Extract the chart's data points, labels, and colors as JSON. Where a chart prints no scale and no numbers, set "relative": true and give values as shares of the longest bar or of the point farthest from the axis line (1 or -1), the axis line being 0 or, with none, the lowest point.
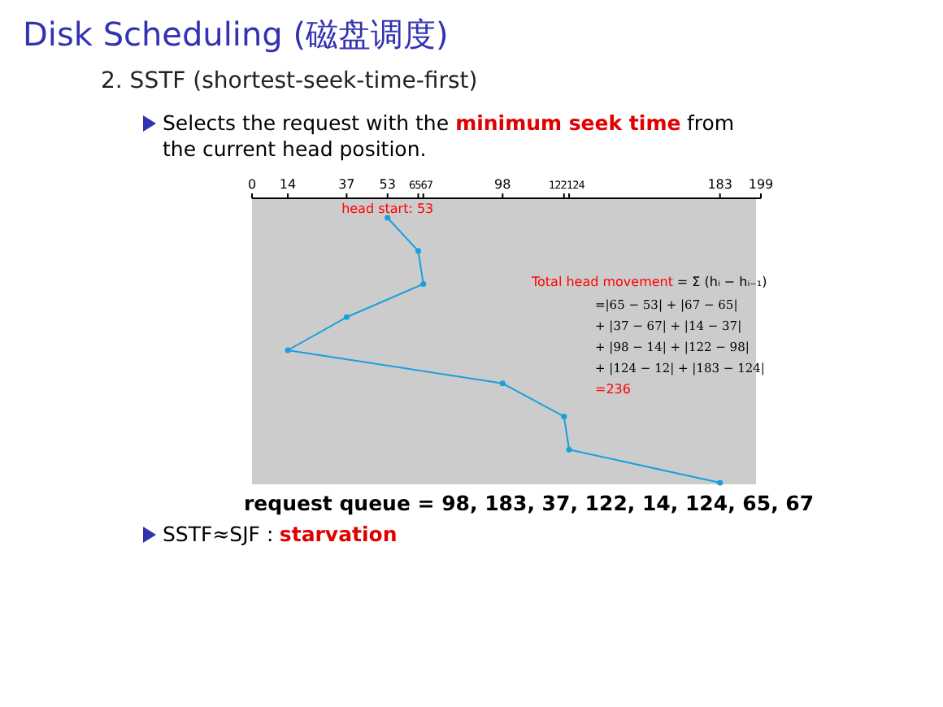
{
  "chart_data": {
    "type": "line",
    "title": "Disk Scheduling (磁盘调度)",
    "subtitle": "2. SSTF (shortest-seek-time-first)",
    "relative": true,
    "xlim": [
      0,
      199
    ],
    "xticks": [
      0,
      14,
      37,
      53,
      65,
      67,
      98,
      122,
      124,
      183,
      199
    ],
    "marker": "circle",
    "line_style": "solid",
    "grid": false,
    "series": [
      {
        "color": "#1aa0dc",
        "x": [
          53,
          65,
          67,
          37,
          14,
          98,
          122,
          124,
          183
        ],
        "values": [
          1,
          0.875,
          0.75,
          0.625,
          0.5,
          0.375,
          0.25,
          0.125,
          0
        ]
      }
    ],
    "annotations": [
      {
        "text": "head start: 53",
        "x": 53,
        "y": 1
      },
      "Selects the request with the",
      "minimum seek time",
      "from",
      "the current head position.",
      "Total head movement",
      "= Σ (hᵢ − hᵢ₋₁)",
      "=|65 − 53| + |67 − 65|",
      "+ |37 − 67| + |14 − 37|",
      "+ |98 − 14| + |122 − 98|",
      "+ |124 − 12| + |183 − 124|",
      "=236",
      "request queue = 98, 183, 37, 122, 14, 124, 65, 67",
      "SSTF≈SJF :",
      "starvation"
    ]
  }
}
